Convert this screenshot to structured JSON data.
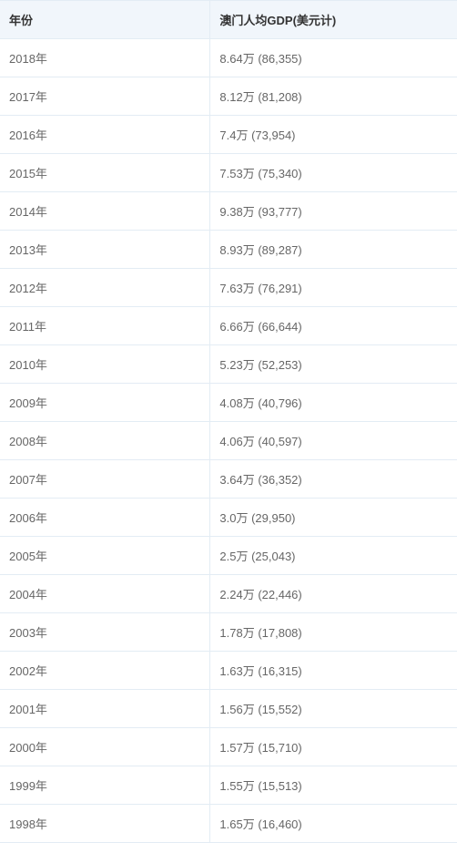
{
  "table": {
    "columns": [
      "年份",
      "澳门人均GDP(美元计)"
    ],
    "rows": [
      [
        "2018年",
        "8.64万 (86,355)"
      ],
      [
        "2017年",
        "8.12万 (81,208)"
      ],
      [
        "2016年",
        "7.4万 (73,954)"
      ],
      [
        "2015年",
        "7.53万 (75,340)"
      ],
      [
        "2014年",
        "9.38万 (93,777)"
      ],
      [
        "2013年",
        "8.93万 (89,287)"
      ],
      [
        "2012年",
        "7.63万 (76,291)"
      ],
      [
        "2011年",
        "6.66万 (66,644)"
      ],
      [
        "2010年",
        "5.23万 (52,253)"
      ],
      [
        "2009年",
        "4.08万 (40,796)"
      ],
      [
        "2008年",
        "4.06万 (40,597)"
      ],
      [
        "2007年",
        "3.64万 (36,352)"
      ],
      [
        "2006年",
        "3.0万 (29,950)"
      ],
      [
        "2005年",
        "2.5万 (25,043)"
      ],
      [
        "2004年",
        "2.24万 (22,446)"
      ],
      [
        "2003年",
        "1.78万 (17,808)"
      ],
      [
        "2002年",
        "1.63万 (16,315)"
      ],
      [
        "2001年",
        "1.56万 (15,552)"
      ],
      [
        "2000年",
        "1.57万 (15,710)"
      ],
      [
        "1999年",
        "1.55万 (15,513)"
      ],
      [
        "1998年",
        "1.65万 (16,460)"
      ]
    ]
  }
}
